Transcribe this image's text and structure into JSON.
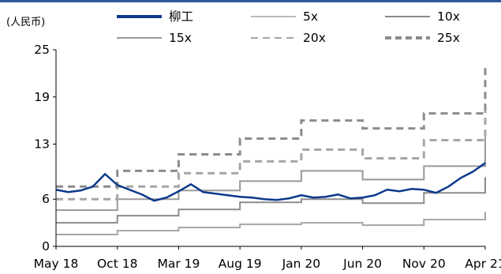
{
  "chart_data": {
    "type": "line",
    "ylabel": "(人民币)",
    "ylim": [
      0,
      25
    ],
    "yticks": [
      0,
      6,
      13,
      19,
      25
    ],
    "xticks": [
      "May 18",
      "Oct 18",
      "Mar 19",
      "Aug 19",
      "Jan 20",
      "Jun 20",
      "Nov 20",
      "Apr 21"
    ],
    "x_range": [
      "2018-05",
      "2021-04"
    ],
    "legend_position": "top",
    "price": {
      "name": "柳工",
      "color": "#0d3a8c",
      "x": [
        "2018-05",
        "2018-06",
        "2018-07",
        "2018-08",
        "2018-09",
        "2018-10",
        "2018-11",
        "2018-12",
        "2019-01",
        "2019-02",
        "2019-03",
        "2019-04",
        "2019-05",
        "2019-06",
        "2019-07",
        "2019-08",
        "2019-09",
        "2019-10",
        "2019-11",
        "2019-12",
        "2020-01",
        "2020-02",
        "2020-03",
        "2020-04",
        "2020-05",
        "2020-06",
        "2020-07",
        "2020-08",
        "2020-09",
        "2020-10",
        "2020-11",
        "2020-12",
        "2021-01",
        "2021-02",
        "2021-03",
        "2021-04"
      ],
      "values": [
        7.2,
        6.9,
        7.1,
        7.6,
        9.2,
        7.8,
        7.2,
        6.6,
        5.8,
        6.2,
        7.0,
        7.9,
        6.9,
        6.7,
        6.5,
        6.3,
        6.2,
        6.0,
        5.9,
        6.1,
        6.5,
        6.2,
        6.3,
        6.6,
        6.1,
        6.2,
        6.5,
        7.2,
        7.0,
        7.3,
        7.2,
        6.8,
        7.6,
        8.7,
        9.5,
        10.6
      ]
    },
    "series": [
      {
        "name": "5x",
        "style": "solid",
        "color": "#a6a6a6",
        "x": [
          "2018-05",
          "2018-10",
          "2019-03",
          "2019-08",
          "2020-01",
          "2020-06",
          "2020-11",
          "2021-04"
        ],
        "values": [
          1.5,
          2.0,
          2.4,
          2.8,
          3.0,
          2.7,
          3.4,
          4.4
        ]
      },
      {
        "name": "10x",
        "style": "solid",
        "color": "#8c8c8c",
        "x": [
          "2018-05",
          "2018-10",
          "2019-03",
          "2019-08",
          "2020-01",
          "2020-06",
          "2020-11",
          "2021-04"
        ],
        "values": [
          3.0,
          3.9,
          4.7,
          5.6,
          6.0,
          5.5,
          6.8,
          8.8
        ]
      },
      {
        "name": "15x",
        "style": "solid",
        "color": "#999999",
        "x": [
          "2018-05",
          "2018-10",
          "2019-03",
          "2019-08",
          "2020-01",
          "2020-06",
          "2020-11",
          "2021-04"
        ],
        "values": [
          4.6,
          6.0,
          7.1,
          8.3,
          9.6,
          8.5,
          10.2,
          13.9
        ]
      },
      {
        "name": "20x",
        "style": "dashed",
        "color": "#a6a6a6",
        "x": [
          "2018-05",
          "2018-10",
          "2019-03",
          "2019-08",
          "2020-01",
          "2020-06",
          "2020-11",
          "2021-04"
        ],
        "values": [
          6.0,
          7.6,
          9.3,
          10.8,
          12.3,
          11.2,
          13.5,
          18.2
        ]
      },
      {
        "name": "25x",
        "style": "dashed",
        "color": "#8c8c8c",
        "x": [
          "2018-05",
          "2018-10",
          "2019-03",
          "2019-08",
          "2020-01",
          "2020-06",
          "2020-11",
          "2021-04"
        ],
        "values": [
          7.6,
          9.6,
          11.7,
          13.7,
          16.0,
          15.0,
          16.9,
          22.7
        ]
      }
    ]
  }
}
